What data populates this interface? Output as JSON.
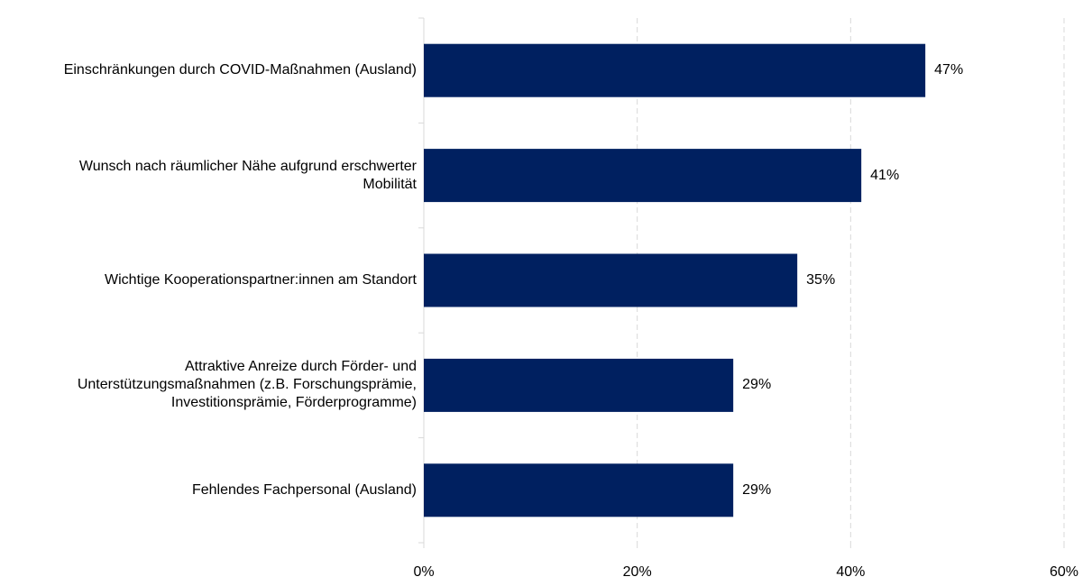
{
  "chart_data": {
    "type": "bar",
    "orientation": "horizontal",
    "categories": [
      "Einschränkungen durch COVID-Maßnahmen (Ausland)",
      "Wunsch nach räumlicher Nähe aufgrund erschwerter\nMobilität",
      "Wichtige Kooperationspartner:innen am Standort",
      "Attraktive Anreize durch Förder- und\nUnterstützungsmaßnahmen (z.B. Forschungsprämie,\nInvestitionsprämie, Förderprogramme)",
      "Fehlendes Fachpersonal (Ausland)"
    ],
    "values": [
      47,
      41,
      35,
      29,
      29
    ],
    "value_labels": [
      "47%",
      "41%",
      "35%",
      "29%",
      "29%"
    ],
    "xlim": [
      0,
      60
    ],
    "xticks": [
      0,
      20,
      40,
      60
    ],
    "xtick_labels": [
      "0%",
      "20%",
      "40%",
      "60%"
    ],
    "title": "",
    "xlabel": "",
    "ylabel": "",
    "grid": "vertical dashed",
    "legend": "none",
    "bar_color": "#002060",
    "grid_color": "#d9d9d9",
    "axis_color": "#d9d9d9"
  }
}
